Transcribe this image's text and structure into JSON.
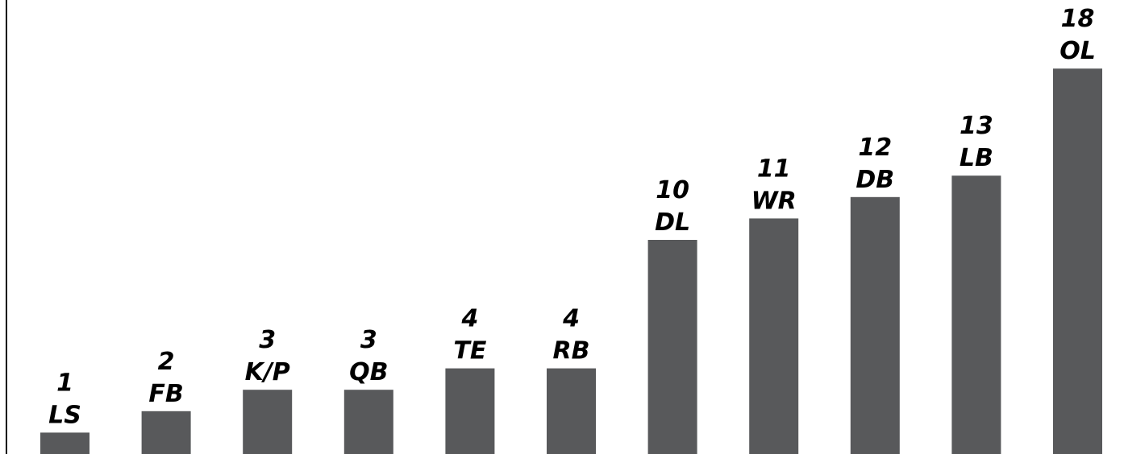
{
  "chart_data": {
    "type": "bar",
    "title": "",
    "xlabel": "",
    "ylabel": "",
    "categories": [
      "LS",
      "FB",
      "K/P",
      "QB",
      "TE",
      "RB",
      "DL",
      "WR",
      "DB",
      "LB",
      "OL"
    ],
    "values": [
      1,
      2,
      3,
      3,
      4,
      4,
      10,
      11,
      12,
      13,
      18
    ],
    "ylim": [
      0,
      18
    ],
    "grid": false,
    "legend": "none",
    "colors": {
      "bar": "#58595b",
      "text": "#000000",
      "axis": "#000000"
    }
  }
}
